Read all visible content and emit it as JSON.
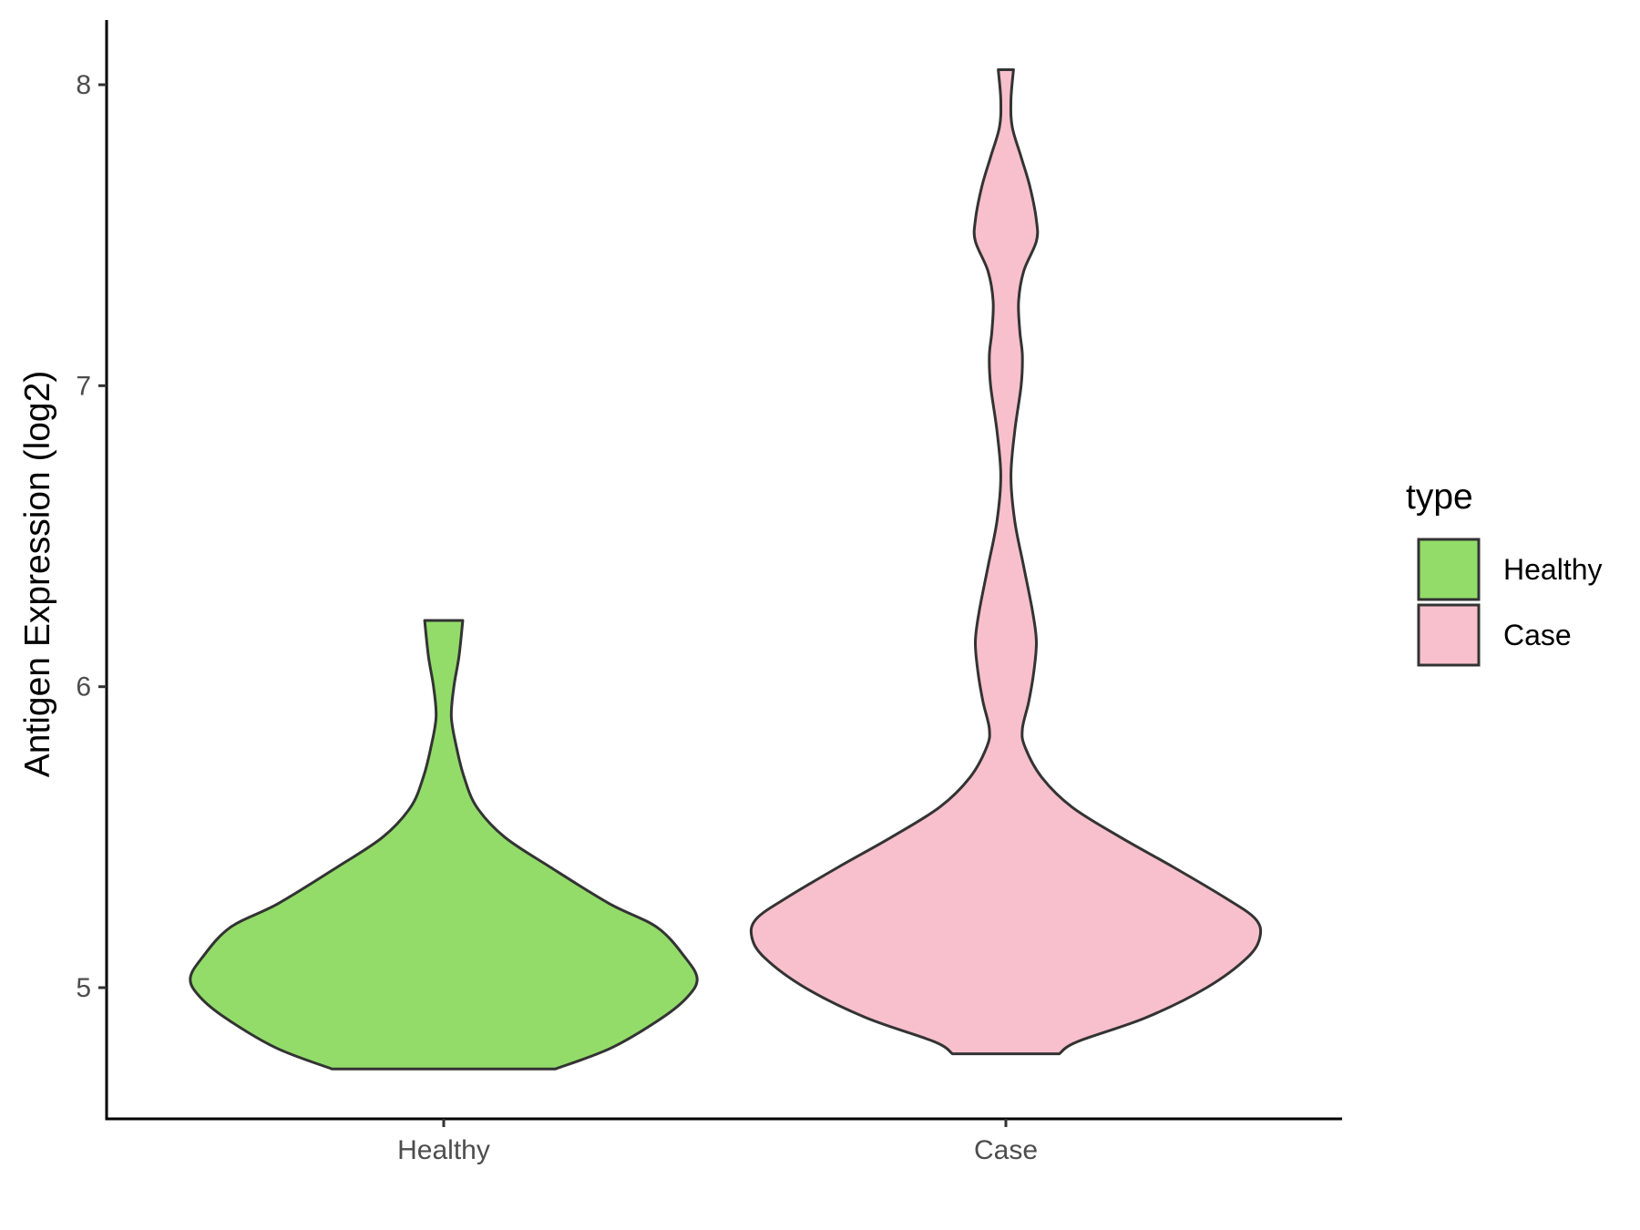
{
  "chart_data": {
    "type": "violin",
    "title": "",
    "xlabel": "",
    "ylabel": "Antigen Expression (log2)",
    "ylim": [
      4.57,
      8.22
    ],
    "yticks": [
      5,
      6,
      7,
      8
    ],
    "categories": [
      "Healthy",
      "Case"
    ],
    "grid": false,
    "legend": {
      "title": "type",
      "position": "right",
      "entries": [
        {
          "label": "Healthy",
          "color": "#93dc6a"
        },
        {
          "label": "Case",
          "color": "#f8c0cc"
        }
      ]
    },
    "series": [
      {
        "name": "Healthy",
        "color": "#93dc6a",
        "min": 4.73,
        "max": 6.22,
        "density": [
          [
            4.73,
            0.44
          ],
          [
            4.8,
            0.66
          ],
          [
            4.9,
            0.86
          ],
          [
            4.97,
            0.96
          ],
          [
            5.03,
            0.997
          ],
          [
            5.1,
            0.95
          ],
          [
            5.2,
            0.84
          ],
          [
            5.28,
            0.65
          ],
          [
            5.4,
            0.42
          ],
          [
            5.5,
            0.24
          ],
          [
            5.6,
            0.13
          ],
          [
            5.7,
            0.08
          ],
          [
            5.8,
            0.05
          ],
          [
            5.9,
            0.03
          ],
          [
            6.0,
            0.04
          ],
          [
            6.1,
            0.06
          ],
          [
            6.22,
            0.075
          ]
        ]
      },
      {
        "name": "Case",
        "color": "#f8c0cc",
        "min": 4.78,
        "max": 8.05,
        "density": [
          [
            4.78,
            0.21
          ],
          [
            4.82,
            0.28
          ],
          [
            4.9,
            0.55
          ],
          [
            5.0,
            0.79
          ],
          [
            5.1,
            0.95
          ],
          [
            5.17,
            1.0
          ],
          [
            5.23,
            0.98
          ],
          [
            5.3,
            0.86
          ],
          [
            5.4,
            0.66
          ],
          [
            5.5,
            0.45
          ],
          [
            5.6,
            0.26
          ],
          [
            5.7,
            0.14
          ],
          [
            5.8,
            0.075
          ],
          [
            5.86,
            0.065
          ],
          [
            5.95,
            0.09
          ],
          [
            6.05,
            0.11
          ],
          [
            6.15,
            0.12
          ],
          [
            6.25,
            0.105
          ],
          [
            6.4,
            0.07
          ],
          [
            6.55,
            0.035
          ],
          [
            6.7,
            0.02
          ],
          [
            6.85,
            0.035
          ],
          [
            7.0,
            0.06
          ],
          [
            7.1,
            0.065
          ],
          [
            7.18,
            0.055
          ],
          [
            7.28,
            0.05
          ],
          [
            7.38,
            0.07
          ],
          [
            7.48,
            0.12
          ],
          [
            7.55,
            0.12
          ],
          [
            7.66,
            0.095
          ],
          [
            7.76,
            0.06
          ],
          [
            7.86,
            0.025
          ],
          [
            7.95,
            0.02
          ],
          [
            8.05,
            0.03
          ]
        ]
      }
    ]
  }
}
